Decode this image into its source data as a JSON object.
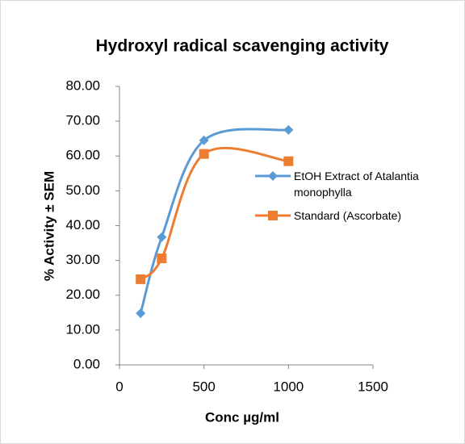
{
  "chart_data": {
    "type": "scatter-smooth",
    "title": "Hydroxyl radical scavenging activity",
    "x_label": "Conc µg/ml",
    "y_label": "% Activity ± SEM",
    "x": [
      125,
      250,
      500,
      1000
    ],
    "series": [
      {
        "name": "EtOH Extract of Atalantia monophylla",
        "color": "#5b9bd5",
        "marker": "diamond",
        "values": [
          14.8,
          36.7,
          64.5,
          67.5
        ]
      },
      {
        "name": "Standard (Ascorbate)",
        "color": "#ed7d31",
        "marker": "square",
        "values": [
          24.6,
          30.6,
          60.6,
          58.5
        ]
      }
    ],
    "xlim": [
      0,
      1500
    ],
    "xticks": [
      0,
      500,
      1000,
      1500
    ],
    "ylim": [
      0,
      80
    ],
    "yticks": [
      {
        "value": 0,
        "label": "0.00"
      },
      {
        "value": 10,
        "label": "10.00"
      },
      {
        "value": 20,
        "label": "20.00"
      },
      {
        "value": 30,
        "label": "30.00"
      },
      {
        "value": 40,
        "label": "40.00"
      },
      {
        "value": 50,
        "label": "50.00"
      },
      {
        "value": 60,
        "label": "60.00"
      },
      {
        "value": 70,
        "label": "70.00"
      },
      {
        "value": 80,
        "label": "80.00"
      }
    ],
    "grid": false
  }
}
